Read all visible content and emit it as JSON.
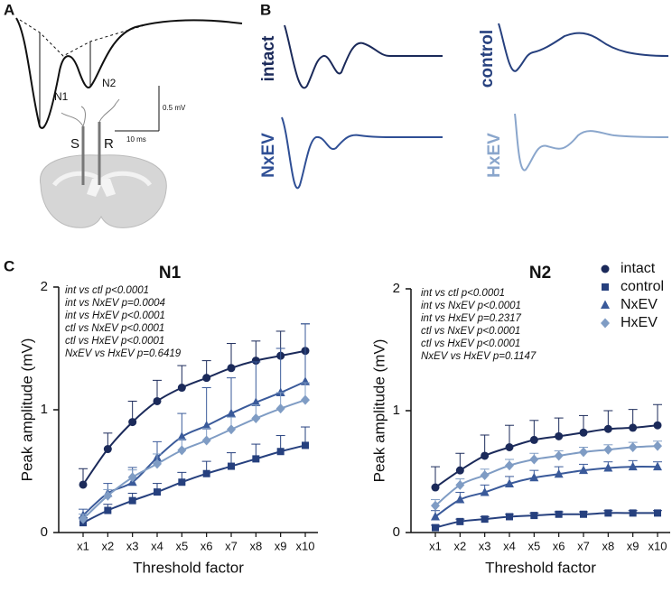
{
  "panels": {
    "a": {
      "label": "A",
      "n1": "N1",
      "n2": "N2",
      "s": "S",
      "r": "R",
      "scale_y": "0.5 mV",
      "scale_x": "10 ms"
    },
    "b": {
      "label": "B",
      "traces": [
        "intact",
        "control",
        "NxEV",
        "HxEV"
      ]
    },
    "c": {
      "label": "C"
    }
  },
  "chart_data": [
    {
      "type": "line",
      "title": "N1",
      "x_label": "Threshold factor",
      "y_label": "Peak amplitude (mV)",
      "categories": [
        "x1",
        "x2",
        "x3",
        "x4",
        "x5",
        "x6",
        "x7",
        "x8",
        "x9",
        "x10"
      ],
      "ylim": [
        0,
        2
      ],
      "yticks": [
        0,
        1,
        2
      ],
      "annotations": [
        "int vs ctl p<0.0001",
        "int vs NxEV p=0.0004",
        "int vs HxEV p<0.0001",
        "ctl vs NxEV p<0.0001",
        "ctl vs HxEV p<0.0001",
        "NxEV vs HxEV p=0.6419"
      ],
      "series": [
        {
          "color": "#1b2a5a",
          "marker": "circle",
          "values": [
            0.39,
            0.68,
            0.9,
            1.07,
            1.18,
            1.26,
            1.34,
            1.4,
            1.44,
            1.48
          ],
          "errors": [
            0.13,
            0.13,
            0.17,
            0.17,
            0.18,
            0.14,
            0.2,
            0.16,
            0.2,
            0.22
          ]
        },
        {
          "color": "#26407e",
          "marker": "square",
          "values": [
            0.08,
            0.18,
            0.26,
            0.33,
            0.41,
            0.48,
            0.54,
            0.6,
            0.66,
            0.71
          ],
          "errors": [
            0.04,
            0.05,
            0.06,
            0.07,
            0.08,
            0.1,
            0.11,
            0.12,
            0.13,
            0.15
          ]
        },
        {
          "color": "#3a5a9a",
          "marker": "triangle",
          "values": [
            0.14,
            0.32,
            0.41,
            0.61,
            0.78,
            0.87,
            0.97,
            1.06,
            1.14,
            1.23
          ],
          "errors": [
            0.05,
            0.08,
            0.12,
            0.13,
            0.19,
            0.31,
            0.29,
            0.33,
            0.36,
            0.47
          ]
        },
        {
          "color": "#7f9cc4",
          "marker": "diamond",
          "values": [
            0.11,
            0.3,
            0.45,
            0.56,
            0.67,
            0.75,
            0.84,
            0.93,
            1.01,
            1.08
          ],
          "errors": [
            0.04,
            0.05,
            0.06,
            0.08,
            0.09,
            0.1,
            0.1,
            0.11,
            0.13,
            0.14
          ]
        }
      ]
    },
    {
      "type": "line",
      "title": "N2",
      "x_label": "Threshold factor",
      "y_label": "Peak amplitude (mV)",
      "categories": [
        "x1",
        "x2",
        "x3",
        "x4",
        "x5",
        "x6",
        "x7",
        "x8",
        "x9",
        "x10"
      ],
      "ylim": [
        0,
        2
      ],
      "yticks": [
        0,
        1,
        2
      ],
      "legend": "upper right",
      "annotations": [
        "int vs ctl p<0.0001",
        "int vs NxEV p<0.0001",
        "int vs HxEV p=0.2317",
        "ctl vs NxEV p<0.0001",
        "ctl vs HxEV p<0.0001",
        "NxEV vs HxEV p=0.1147"
      ],
      "series": [
        {
          "name": "intact",
          "color": "#1b2a5a",
          "marker": "circle",
          "values": [
            0.37,
            0.51,
            0.63,
            0.7,
            0.76,
            0.79,
            0.82,
            0.85,
            0.86,
            0.88
          ],
          "errors": [
            0.17,
            0.14,
            0.17,
            0.18,
            0.16,
            0.15,
            0.14,
            0.15,
            0.15,
            0.17
          ]
        },
        {
          "name": "control",
          "color": "#26407e",
          "marker": "square",
          "values": [
            0.04,
            0.09,
            0.11,
            0.13,
            0.14,
            0.15,
            0.15,
            0.16,
            0.16,
            0.16
          ],
          "errors": [
            0.02,
            0.02,
            0.02,
            0.02,
            0.02,
            0.02,
            0.02,
            0.02,
            0.02,
            0.02
          ]
        },
        {
          "name": "NxEV",
          "color": "#3a5a9a",
          "marker": "triangle",
          "values": [
            0.13,
            0.27,
            0.33,
            0.4,
            0.45,
            0.48,
            0.51,
            0.53,
            0.54,
            0.54
          ],
          "errors": [
            0.05,
            0.06,
            0.06,
            0.06,
            0.06,
            0.06,
            0.05,
            0.05,
            0.05,
            0.04
          ]
        },
        {
          "name": "HxEV",
          "color": "#7f9cc4",
          "marker": "diamond",
          "values": [
            0.22,
            0.39,
            0.47,
            0.55,
            0.6,
            0.63,
            0.66,
            0.68,
            0.7,
            0.71
          ],
          "errors": [
            0.05,
            0.05,
            0.05,
            0.05,
            0.05,
            0.04,
            0.04,
            0.04,
            0.04,
            0.04
          ]
        }
      ]
    }
  ]
}
